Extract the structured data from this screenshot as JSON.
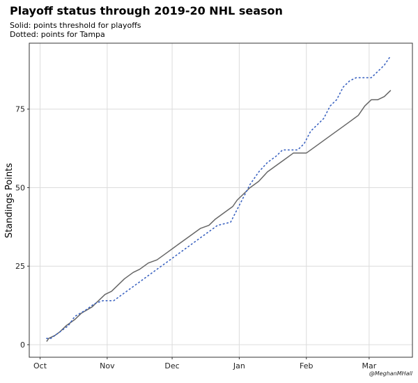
{
  "chart_data": {
    "type": "line",
    "title": "Playoff status through 2019-20 NHL season",
    "subtitle_lines": [
      "Solid: points threshold for playoffs",
      "Dotted: points for Tampa"
    ],
    "ylabel": "Standings Points",
    "xlabel": "",
    "caption": "@MeghanMHall",
    "x_ticks": [
      {
        "label": "Oct",
        "date": "2019-10-01"
      },
      {
        "label": "Nov",
        "date": "2019-11-01"
      },
      {
        "label": "Dec",
        "date": "2019-12-01"
      },
      {
        "label": "Jan",
        "date": "2020-01-01"
      },
      {
        "label": "Feb",
        "date": "2020-02-01"
      },
      {
        "label": "Mar",
        "date": "2020-03-01"
      }
    ],
    "y_ticks": [
      0,
      25,
      50,
      75
    ],
    "xlim": [
      "2019-09-26",
      "2020-03-21"
    ],
    "ylim": [
      -4,
      96
    ],
    "grid": true,
    "series": [
      {
        "line_style": "solid",
        "color": "#666666",
        "points": [
          [
            "2019-10-04",
            1
          ],
          [
            "2019-10-05",
            2
          ],
          [
            "2019-10-08",
            3
          ],
          [
            "2019-10-10",
            4
          ],
          [
            "2019-10-13",
            6
          ],
          [
            "2019-10-17",
            8
          ],
          [
            "2019-10-20",
            10
          ],
          [
            "2019-10-25",
            12
          ],
          [
            "2019-10-28",
            14
          ],
          [
            "2019-10-31",
            16
          ],
          [
            "2019-11-03",
            17
          ],
          [
            "2019-11-06",
            19
          ],
          [
            "2019-11-09",
            21
          ],
          [
            "2019-11-13",
            23
          ],
          [
            "2019-11-16",
            24
          ],
          [
            "2019-11-20",
            26
          ],
          [
            "2019-11-24",
            27
          ],
          [
            "2019-11-28",
            29
          ],
          [
            "2019-12-02",
            31
          ],
          [
            "2019-12-06",
            33
          ],
          [
            "2019-12-10",
            35
          ],
          [
            "2019-12-14",
            37
          ],
          [
            "2019-12-18",
            38
          ],
          [
            "2019-12-21",
            40
          ],
          [
            "2019-12-25",
            42
          ],
          [
            "2019-12-29",
            44
          ],
          [
            "2019-12-31",
            46
          ],
          [
            "2020-01-03",
            48
          ],
          [
            "2020-01-06",
            50
          ],
          [
            "2020-01-10",
            52
          ],
          [
            "2020-01-14",
            55
          ],
          [
            "2020-01-18",
            57
          ],
          [
            "2020-01-22",
            59
          ],
          [
            "2020-01-26",
            61
          ],
          [
            "2020-02-01",
            61
          ],
          [
            "2020-02-05",
            63
          ],
          [
            "2020-02-09",
            65
          ],
          [
            "2020-02-13",
            67
          ],
          [
            "2020-02-17",
            69
          ],
          [
            "2020-02-21",
            71
          ],
          [
            "2020-02-25",
            73
          ],
          [
            "2020-02-28",
            76
          ],
          [
            "2020-03-02",
            78
          ],
          [
            "2020-03-05",
            78
          ],
          [
            "2020-03-08",
            79
          ],
          [
            "2020-03-11",
            81
          ]
        ]
      },
      {
        "line_style": "dotted",
        "color": "#3a62c0",
        "points": [
          [
            "2019-10-04",
            2
          ],
          [
            "2019-10-06",
            2
          ],
          [
            "2019-10-10",
            4
          ],
          [
            "2019-10-14",
            6
          ],
          [
            "2019-10-17",
            9
          ],
          [
            "2019-10-22",
            11
          ],
          [
            "2019-10-26",
            13
          ],
          [
            "2019-10-30",
            14
          ],
          [
            "2019-11-04",
            14
          ],
          [
            "2019-11-08",
            16
          ],
          [
            "2019-11-12",
            18
          ],
          [
            "2019-11-16",
            20
          ],
          [
            "2019-11-20",
            22
          ],
          [
            "2019-11-24",
            24
          ],
          [
            "2019-11-28",
            26
          ],
          [
            "2019-12-02",
            28
          ],
          [
            "2019-12-06",
            30
          ],
          [
            "2019-12-10",
            32
          ],
          [
            "2019-12-14",
            34
          ],
          [
            "2019-12-18",
            36
          ],
          [
            "2019-12-22",
            38
          ],
          [
            "2019-12-28",
            39
          ],
          [
            "2019-12-31",
            43
          ],
          [
            "2020-01-03",
            47
          ],
          [
            "2020-01-06",
            51
          ],
          [
            "2020-01-10",
            55
          ],
          [
            "2020-01-14",
            58
          ],
          [
            "2020-01-18",
            60
          ],
          [
            "2020-01-21",
            62
          ],
          [
            "2020-01-28",
            62
          ],
          [
            "2020-01-31",
            64
          ],
          [
            "2020-02-03",
            68
          ],
          [
            "2020-02-06",
            70
          ],
          [
            "2020-02-09",
            72
          ],
          [
            "2020-02-12",
            76
          ],
          [
            "2020-02-15",
            78
          ],
          [
            "2020-02-18",
            82
          ],
          [
            "2020-02-21",
            84
          ],
          [
            "2020-02-24",
            85
          ],
          [
            "2020-03-02",
            85
          ],
          [
            "2020-03-05",
            87
          ],
          [
            "2020-03-08",
            89
          ],
          [
            "2020-03-11",
            92
          ]
        ]
      }
    ]
  }
}
